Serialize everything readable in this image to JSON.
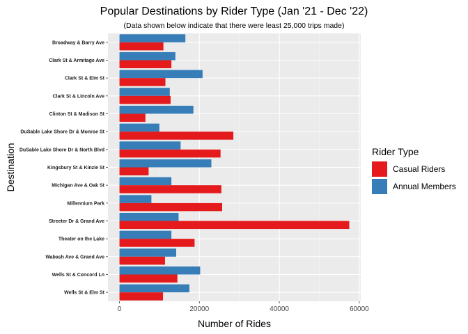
{
  "chart_data": {
    "type": "bar",
    "orientation": "horizontal",
    "title": "Popular Destinations by Rider Type (Jan '21 - Dec '22)",
    "subtitle": "(Data shown below indicate that there were least 25,000 trips made)",
    "xlabel": "Number of Rides",
    "ylabel": "Destination",
    "xlim": [
      0,
      60000
    ],
    "xticks": [
      0,
      20000,
      40000,
      60000
    ],
    "grid": true,
    "legend_title": "Rider Type",
    "legend_position": "right",
    "categories": [
      "Broadway & Barry Ave",
      "Clark St & Armitage Ave",
      "Clark St & Elm St",
      "Clark St & Lincoln Ave",
      "Clinton St & Madison St",
      "DuSable Lake Shore Dr & Monroe St",
      "DuSable Lake Shore Dr & North Blvd",
      "Kingsbury St & Kinzie St",
      "Michigan Ave & Oak St",
      "Millennium Park",
      "Streeter Dr & Grand Ave",
      "Theater on the Lake",
      "Wabash Ave & Grand Ave",
      "Wells St & Concord Ln",
      "Wells St & Elm St"
    ],
    "series": [
      {
        "name": "Casual Riders",
        "color": "#E41A1C",
        "values": [
          11000,
          13000,
          11500,
          12800,
          6500,
          28500,
          25300,
          7300,
          25500,
          25700,
          57500,
          18800,
          11400,
          14500,
          10900
        ]
      },
      {
        "name": "Annual Members",
        "color": "#377EB8",
        "values": [
          16500,
          14000,
          20800,
          12600,
          18500,
          10000,
          15300,
          23000,
          13000,
          8000,
          14800,
          13000,
          14200,
          20200,
          17500
        ]
      }
    ]
  }
}
